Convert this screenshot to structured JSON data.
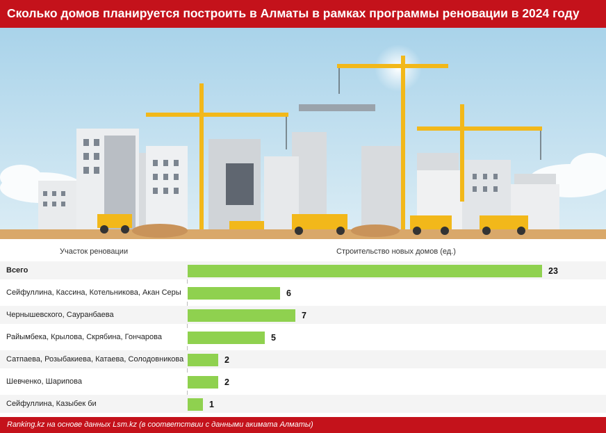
{
  "header": {
    "title": "Сколько домов планируется построить в Алматы в рамках программы реновации в 2024 году"
  },
  "colors": {
    "brand_red": "#c4121b",
    "bar_green": "#8fd14f",
    "sky": "#c7e4f2",
    "crane_yellow": "#f2b81a"
  },
  "chart_data": {
    "type": "bar",
    "orientation": "horizontal",
    "xlabel": "Строительство новых домов (ед.)",
    "ylabel": "Участок реновации",
    "categories": [
      "Всего",
      "Сейфуллина, Кассина, Котельникова, Акан Серы",
      "Чернышевского, Сауранбаева",
      "Райымбека, Крылова, Скрябина, Гончарова",
      "Сатпаева, Розыбакиева, Катаева, Солодовникова",
      "Шевченко, Шарипова",
      "Сейфуллина, Казыбек би"
    ],
    "values": [
      23,
      6,
      7,
      5,
      2,
      2,
      1
    ],
    "xlim": [
      0,
      23
    ],
    "grid": false,
    "legend": "none"
  },
  "footer": {
    "source": "Ranking.kz на основе данных Lsm.kz (в соответствии с данными акимата Алматы)"
  }
}
